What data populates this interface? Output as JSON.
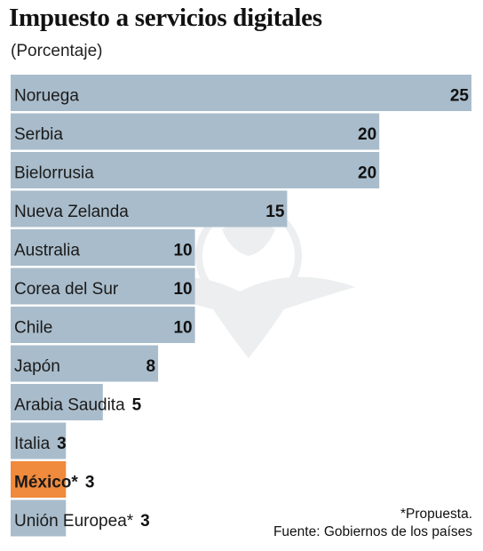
{
  "chart_data": {
    "type": "bar",
    "orientation": "horizontal",
    "title": "Impuesto a servicios digitales",
    "subtitle": "(Porcentaje)",
    "categories": [
      "Noruega",
      "Serbia",
      "Bielorrusia",
      "Nueva Zelanda",
      "Australia",
      "Corea del Sur",
      "Chile",
      "Japón",
      "Arabia Saudita",
      "Italia",
      "México*",
      "Unión Europea*"
    ],
    "values": [
      25,
      20,
      20,
      15,
      10,
      10,
      10,
      8,
      5,
      3,
      3,
      3
    ],
    "highlight_index": 10,
    "xlim": [
      0,
      25
    ],
    "grid": false,
    "legend": "none"
  },
  "colors": {
    "bar": "#a9bccb",
    "highlight": "#f08a3c",
    "watermark": "#6b7a86"
  },
  "watermark_icon": "eagle-globe-icon",
  "footnotes": {
    "note": "*Propuesta.",
    "source": "Fuente: Gobiernos de los países"
  }
}
